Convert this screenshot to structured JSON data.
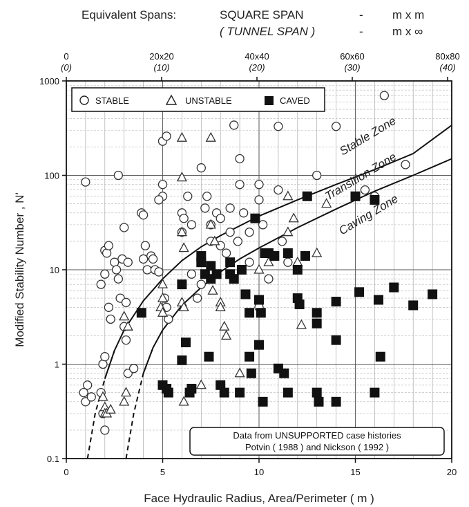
{
  "header": {
    "line1_label": "Equivalent Spans:",
    "line1_kind": "SQUARE SPAN",
    "line1_dash": "-",
    "line1_unit": "m x m",
    "line2_kind": "( TUNNEL SPAN )",
    "line2_dash": "-",
    "line2_unit": "m x ∞"
  },
  "chart_data": {
    "type": "scatter",
    "xlabel": "Face Hydraulic Radius, Area/Perimeter ( m )",
    "ylabel": "Modified Stability Number , N'",
    "xlim": [
      0,
      20
    ],
    "ylim": [
      0.1,
      1000
    ],
    "y_scale": "log",
    "grid": true,
    "x_ticks": [
      "0",
      "5",
      "10",
      "15",
      "20"
    ],
    "y_ticks": [
      "0.1",
      "1",
      "10",
      "100",
      "1000"
    ],
    "top_axis": {
      "square_span_ticks": [
        "0",
        "20x20",
        "40x40",
        "60x60",
        "80x80"
      ],
      "tunnel_span_ticks": [
        "(0)",
        "(10)",
        "(20)",
        "(30)",
        "(40)"
      ]
    },
    "legend": {
      "placement": "top-left",
      "entries": [
        {
          "label": "STABLE",
          "marker": "open-circle"
        },
        {
          "label": "UNSTABLE",
          "marker": "open-triangle"
        },
        {
          "label": "CAVED",
          "marker": "filled-square"
        }
      ]
    },
    "zones": [
      {
        "label": "Stable Zone"
      },
      {
        "label": "Transition Zone"
      },
      {
        "label": "Caving Zone"
      }
    ],
    "boundaries": [
      {
        "name": "stable-transition",
        "points": [
          [
            1.1,
            0.1
          ],
          [
            1.5,
            0.3
          ],
          [
            2,
            0.7
          ],
          [
            2.5,
            1.4
          ],
          [
            3,
            2.3
          ],
          [
            4,
            4.7
          ],
          [
            5,
            8
          ],
          [
            6,
            12.5
          ],
          [
            7,
            17.5
          ],
          [
            8,
            23
          ],
          [
            10,
            37
          ],
          [
            12,
            55
          ],
          [
            14,
            80
          ],
          [
            16,
            115
          ],
          [
            18,
            170
          ],
          [
            20,
            340
          ]
        ]
      },
      {
        "name": "transition-caving",
        "points": [
          [
            3.1,
            0.1
          ],
          [
            3.5,
            0.3
          ],
          [
            4,
            0.8
          ],
          [
            4.5,
            1.5
          ],
          [
            5,
            2.3
          ],
          [
            6,
            4.2
          ],
          [
            7,
            6.5
          ],
          [
            8,
            9.5
          ],
          [
            9,
            13
          ],
          [
            10,
            17
          ],
          [
            12,
            28
          ],
          [
            14,
            44
          ],
          [
            16,
            68
          ],
          [
            18,
            100
          ],
          [
            20,
            150
          ]
        ]
      }
    ],
    "annotation": {
      "line1": "Data from UNSUPPORTED case histories",
      "line2": "Potvin ( 1988 )  and  Nickson ( 1992 )"
    },
    "series": [
      {
        "name": "STABLE",
        "points": [
          [
            1.0,
            85
          ],
          [
            0.9,
            0.5
          ],
          [
            1.0,
            0.4
          ],
          [
            1.1,
            0.6
          ],
          [
            1.3,
            0.45
          ],
          [
            1.8,
            0.5
          ],
          [
            1.9,
            0.3
          ],
          [
            2.0,
            0.2
          ],
          [
            1.9,
            1.0
          ],
          [
            2.0,
            1.2
          ],
          [
            2.0,
            16
          ],
          [
            2.1,
            15
          ],
          [
            2.2,
            18
          ],
          [
            2.0,
            9
          ],
          [
            1.8,
            7
          ],
          [
            2.2,
            4
          ],
          [
            2.3,
            3
          ],
          [
            2.5,
            12
          ],
          [
            2.6,
            10
          ],
          [
            2.7,
            8
          ],
          [
            2.8,
            5
          ],
          [
            2.9,
            13
          ],
          [
            3.0,
            28
          ],
          [
            3.2,
            12
          ],
          [
            3.1,
            4.5
          ],
          [
            3.0,
            2.5
          ],
          [
            3.1,
            1.8
          ],
          [
            3.2,
            0.8
          ],
          [
            3.5,
            0.9
          ],
          [
            2.7,
            100
          ],
          [
            3.9,
            40
          ],
          [
            4.0,
            38
          ],
          [
            4.1,
            18
          ],
          [
            4.0,
            13
          ],
          [
            4.2,
            10
          ],
          [
            4.4,
            14
          ],
          [
            4.5,
            13
          ],
          [
            4.6,
            10
          ],
          [
            4.8,
            9.5
          ],
          [
            5.0,
            80
          ],
          [
            5.0,
            60
          ],
          [
            4.8,
            55
          ],
          [
            5.0,
            230
          ],
          [
            5.2,
            260
          ],
          [
            5.1,
            5
          ],
          [
            5.2,
            4
          ],
          [
            5.3,
            3
          ],
          [
            6.0,
            40
          ],
          [
            6.1,
            35
          ],
          [
            6.0,
            25
          ],
          [
            6.3,
            60
          ],
          [
            6.5,
            30
          ],
          [
            6.5,
            9
          ],
          [
            6.8,
            5
          ],
          [
            7.0,
            120
          ],
          [
            7.0,
            7
          ],
          [
            7.5,
            30
          ],
          [
            7.5,
            20
          ],
          [
            7.2,
            45
          ],
          [
            7.3,
            60
          ],
          [
            7.8,
            40
          ],
          [
            8.0,
            35
          ],
          [
            8.0,
            18
          ],
          [
            8.3,
            15
          ],
          [
            8.5,
            25
          ],
          [
            8.5,
            45
          ],
          [
            8.7,
            340
          ],
          [
            8.9,
            20
          ],
          [
            9.0,
            150
          ],
          [
            9.0,
            80
          ],
          [
            9.2,
            40
          ],
          [
            9.5,
            25
          ],
          [
            9.5,
            12
          ],
          [
            10.0,
            80
          ],
          [
            10.0,
            55
          ],
          [
            10.2,
            30
          ],
          [
            10.3,
            15
          ],
          [
            10.5,
            8
          ],
          [
            10.0,
            4
          ],
          [
            11.0,
            330
          ],
          [
            11.0,
            70
          ],
          [
            11.2,
            20
          ],
          [
            11.5,
            12
          ],
          [
            13.0,
            100
          ],
          [
            14.0,
            330
          ],
          [
            15.5,
            70
          ],
          [
            16.0,
            60
          ],
          [
            16.5,
            700
          ],
          [
            17.6,
            130
          ]
        ]
      },
      {
        "name": "UNSTABLE",
        "points": [
          [
            1.9,
            0.45
          ],
          [
            2.0,
            0.35
          ],
          [
            2.0,
            0.3
          ],
          [
            2.1,
            0.3
          ],
          [
            2.3,
            0.33
          ],
          [
            3.0,
            0.4
          ],
          [
            3.1,
            0.5
          ],
          [
            3.0,
            3.2
          ],
          [
            3.2,
            2.5
          ],
          [
            4.9,
            4
          ],
          [
            5.0,
            3.5
          ],
          [
            5.0,
            5
          ],
          [
            5.0,
            7
          ],
          [
            6.0,
            250
          ],
          [
            6.0,
            95
          ],
          [
            6.0,
            25
          ],
          [
            6.1,
            17
          ],
          [
            6.0,
            4.5
          ],
          [
            6.1,
            4
          ],
          [
            6.1,
            0.4
          ],
          [
            7.0,
            0.6
          ],
          [
            7.5,
            30
          ],
          [
            7.7,
            20
          ],
          [
            8.0,
            4.5
          ],
          [
            8.0,
            4
          ],
          [
            8.2,
            2.5
          ],
          [
            8.3,
            2
          ],
          [
            7.5,
            250
          ],
          [
            7.6,
            6
          ],
          [
            9.0,
            0.8
          ],
          [
            10.5,
            12
          ],
          [
            10.0,
            10
          ],
          [
            11.5,
            60
          ],
          [
            11.8,
            35
          ],
          [
            11.5,
            25
          ],
          [
            12.0,
            12
          ],
          [
            12.2,
            2.6
          ],
          [
            13.5,
            50
          ],
          [
            13.0,
            15
          ]
        ]
      },
      {
        "name": "CAVED",
        "points": [
          [
            3.9,
            3.5
          ],
          [
            5.0,
            0.6
          ],
          [
            5.3,
            0.5
          ],
          [
            5.2,
            0.55
          ],
          [
            6.0,
            7
          ],
          [
            6.2,
            1.7
          ],
          [
            6.0,
            1.1
          ],
          [
            6.4,
            0.5
          ],
          [
            6.5,
            0.55
          ],
          [
            7.0,
            14
          ],
          [
            7.0,
            12
          ],
          [
            7.2,
            9
          ],
          [
            7.5,
            11
          ],
          [
            7.5,
            8
          ],
          [
            7.4,
            1.2
          ],
          [
            7.8,
            9
          ],
          [
            8.0,
            0.6
          ],
          [
            8.2,
            0.5
          ],
          [
            8.5,
            12
          ],
          [
            8.5,
            9
          ],
          [
            8.7,
            8
          ],
          [
            9.0,
            0.5
          ],
          [
            9.1,
            10
          ],
          [
            9.3,
            5.5
          ],
          [
            9.5,
            3.5
          ],
          [
            9.5,
            1.2
          ],
          [
            9.6,
            0.8
          ],
          [
            9.8,
            35
          ],
          [
            10.0,
            4.8
          ],
          [
            10.1,
            3.5
          ],
          [
            10.0,
            1.6
          ],
          [
            10.2,
            0.4
          ],
          [
            10.3,
            15
          ],
          [
            10.5,
            15
          ],
          [
            10.8,
            14
          ],
          [
            11.0,
            0.9
          ],
          [
            11.3,
            0.8
          ],
          [
            11.5,
            15
          ],
          [
            11.5,
            0.5
          ],
          [
            12.0,
            10
          ],
          [
            12.0,
            5
          ],
          [
            12.1,
            4.3
          ],
          [
            12.4,
            14
          ],
          [
            12.5,
            60
          ],
          [
            13.0,
            3.5
          ],
          [
            13.0,
            2.7
          ],
          [
            13.0,
            0.5
          ],
          [
            13.1,
            0.4
          ],
          [
            14.0,
            4.6
          ],
          [
            14.0,
            1.8
          ],
          [
            14.0,
            0.4
          ],
          [
            15.0,
            60
          ],
          [
            15.2,
            5.8
          ],
          [
            16.0,
            55
          ],
          [
            16.2,
            4.8
          ],
          [
            16.3,
            1.2
          ],
          [
            16.0,
            0.5
          ],
          [
            17.0,
            6.5
          ],
          [
            18.0,
            4.2
          ],
          [
            19.0,
            5.5
          ]
        ]
      }
    ]
  }
}
